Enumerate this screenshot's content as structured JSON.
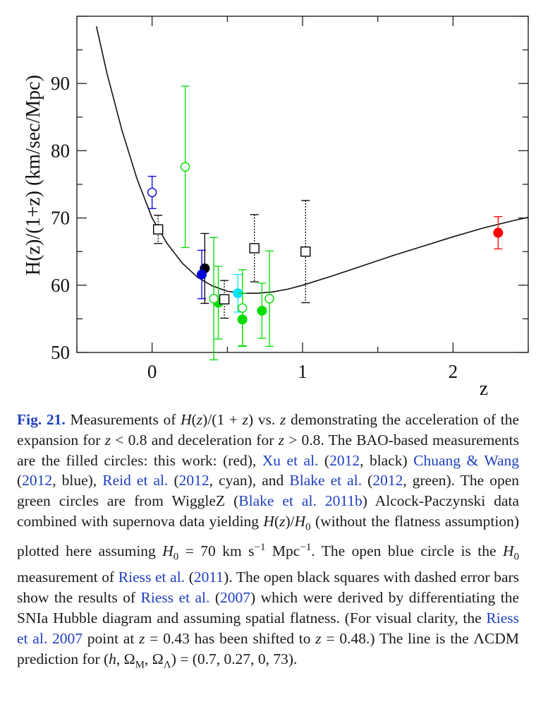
{
  "chart_data": {
    "type": "scatter",
    "xlabel": "z",
    "ylabel": "H(z)/(1+z)  (km/sec/Mpc)",
    "xlim": [
      -0.5,
      2.5
    ],
    "ylim": [
      50,
      100
    ],
    "xticks": [
      0,
      1,
      2
    ],
    "yticks": [
      50,
      60,
      70,
      80,
      90
    ],
    "grid": false,
    "model_line": {
      "name": "ΛCDM prediction",
      "params": {
        "h": 0.7,
        "omega_m": 0.27,
        "omega_lambda": 0.73
      },
      "x": [
        -0.37,
        -0.3,
        -0.2,
        -0.1,
        0.0,
        0.1,
        0.2,
        0.3,
        0.4,
        0.5,
        0.6,
        0.7,
        0.8,
        0.9,
        1.0,
        1.2,
        1.4,
        1.6,
        1.8,
        2.0,
        2.2,
        2.4,
        2.5
      ],
      "y": [
        98.5,
        91.5,
        83.0,
        75.8,
        70.0,
        66.2,
        63.3,
        61.2,
        59.9,
        59.1,
        58.8,
        58.8,
        59.0,
        59.4,
        60.0,
        61.4,
        62.9,
        64.4,
        65.8,
        67.2,
        68.5,
        69.6,
        70.1
      ]
    },
    "series": [
      {
        "color": "#ff0000",
        "marker": "filled-circle",
        "error": "solid",
        "points": [
          {
            "x": 2.3,
            "y": 67.8,
            "err": 2.4
          }
        ]
      },
      {
        "color": "#000000",
        "marker": "filled-circle",
        "error": "solid",
        "points": [
          {
            "x": 0.35,
            "y": 62.5,
            "err": 5.2
          }
        ]
      },
      {
        "color": "#0000dd",
        "marker": "filled-circle",
        "error": "solid",
        "points": [
          {
            "x": 0.33,
            "y": 61.6,
            "err": 3.6
          }
        ]
      },
      {
        "color": "#00e5ff",
        "marker": "filled-circle",
        "error": "solid",
        "points": [
          {
            "x": 0.57,
            "y": 58.8,
            "err": 2.8
          }
        ]
      },
      {
        "color": "#00dd00",
        "marker": "filled-circle",
        "error": "solid",
        "points": [
          {
            "x": 0.44,
            "y": 57.4,
            "err": 5.4
          },
          {
            "x": 0.6,
            "y": 54.9,
            "err": 3.9
          },
          {
            "x": 0.73,
            "y": 56.2,
            "err": 4.1
          }
        ]
      },
      {
        "color": "#00dd00",
        "marker": "open-circle",
        "error": "solid",
        "points": [
          {
            "x": 0.22,
            "y": 77.6,
            "err": 12.0
          },
          {
            "x": 0.41,
            "y": 58.0,
            "err": 9.1
          },
          {
            "x": 0.6,
            "y": 56.6,
            "err": 5.7
          },
          {
            "x": 0.78,
            "y": 58.0,
            "err": 7.1
          }
        ]
      },
      {
        "color": "#0000dd",
        "marker": "open-circle",
        "error": "solid",
        "points": [
          {
            "x": 0.0,
            "y": 73.8,
            "err": 2.4
          }
        ]
      },
      {
        "color": "#000000",
        "marker": "open-square",
        "error": "dashed",
        "points": [
          {
            "x": 0.04,
            "y": 68.3,
            "err": 2.1
          },
          {
            "x": 0.48,
            "y": 57.9,
            "err": 2.8
          },
          {
            "x": 0.68,
            "y": 65.5,
            "err": 5.0
          },
          {
            "x": 1.02,
            "y": 65.0,
            "err": 7.6
          }
        ]
      }
    ]
  },
  "caption": {
    "label": "Fig. 21.",
    "body": [
      {
        "t": " Measurements of "
      },
      {
        "t": "H",
        "m": 1
      },
      {
        "t": "("
      },
      {
        "t": "z",
        "m": 1
      },
      {
        "t": ")/(1 + "
      },
      {
        "t": "z",
        "m": 1
      },
      {
        "t": ") vs. "
      },
      {
        "t": "z",
        "m": 1
      },
      {
        "t": " demonstrating the acceleration of the expansion for "
      },
      {
        "t": "z",
        "m": 1
      },
      {
        "t": " < 0.8 and deceleration for "
      },
      {
        "t": "z",
        "m": 1
      },
      {
        "t": " > 0.8. The BAO-based measurements are the filled circles: this work: (red), "
      },
      {
        "t": "Xu et al.",
        "c": 1
      },
      {
        "t": " ("
      },
      {
        "t": "2012",
        "c": 1
      },
      {
        "t": ", black) "
      },
      {
        "t": "Chuang & Wang",
        "c": 1
      },
      {
        "t": " ("
      },
      {
        "t": "2012",
        "c": 1
      },
      {
        "t": ", blue), "
      },
      {
        "t": "Reid et al.",
        "c": 1
      },
      {
        "t": " ("
      },
      {
        "t": "2012",
        "c": 1
      },
      {
        "t": ", cyan), and "
      },
      {
        "t": "Blake et al.",
        "c": 1
      },
      {
        "t": " ("
      },
      {
        "t": "2012",
        "c": 1
      },
      {
        "t": ", green). The open green circles are from WiggleZ ("
      },
      {
        "t": "Blake et al. 2011b",
        "c": 1
      },
      {
        "t": ") Alcock-Paczynski data combined with supernova data yielding "
      },
      {
        "t": "H",
        "m": 1
      },
      {
        "t": "("
      },
      {
        "t": "z",
        "m": 1
      },
      {
        "t": ")/"
      },
      {
        "t": "H",
        "m": 1
      },
      {
        "t": "0",
        "sub": 1
      },
      {
        "t": " (without the flatness assumption) plotted here assuming "
      },
      {
        "t": "H",
        "m": 1
      },
      {
        "t": "0",
        "sub": 1
      },
      {
        "t": " = 70 km s"
      },
      {
        "t": "−1",
        "sup": 1
      },
      {
        "t": " Mpc"
      },
      {
        "t": "−1",
        "sup": 1
      },
      {
        "t": ". The open blue circle is the "
      },
      {
        "t": "H",
        "m": 1
      },
      {
        "t": "0",
        "sub": 1
      },
      {
        "t": " measurement of "
      },
      {
        "t": "Riess et al.",
        "c": 1
      },
      {
        "t": " ("
      },
      {
        "t": "2011",
        "c": 1
      },
      {
        "t": "). The open black squares with dashed error bars show the results of "
      },
      {
        "t": "Riess et al.",
        "c": 1
      },
      {
        "t": " ("
      },
      {
        "t": "2007",
        "c": 1
      },
      {
        "t": ") which were derived by differentiating the SNIa Hubble diagram and assuming spatial flatness. (For visual clarity, the "
      },
      {
        "t": "Riess et al. 2007",
        "c": 1
      },
      {
        "t": " point at "
      },
      {
        "t": "z",
        "m": 1
      },
      {
        "t": " = 0.43 has been shifted to "
      },
      {
        "t": "z",
        "m": 1
      },
      {
        "t": " = 0.48.) The line is the ΛCDM prediction for ("
      },
      {
        "t": "h",
        "m": 1
      },
      {
        "t": ", Ω"
      },
      {
        "t": "M",
        "sub": 1
      },
      {
        "t": ", Ω"
      },
      {
        "t": "Λ",
        "sub": 1
      },
      {
        "t": ") = (0.7, 0.27, 0, 73)."
      }
    ]
  }
}
